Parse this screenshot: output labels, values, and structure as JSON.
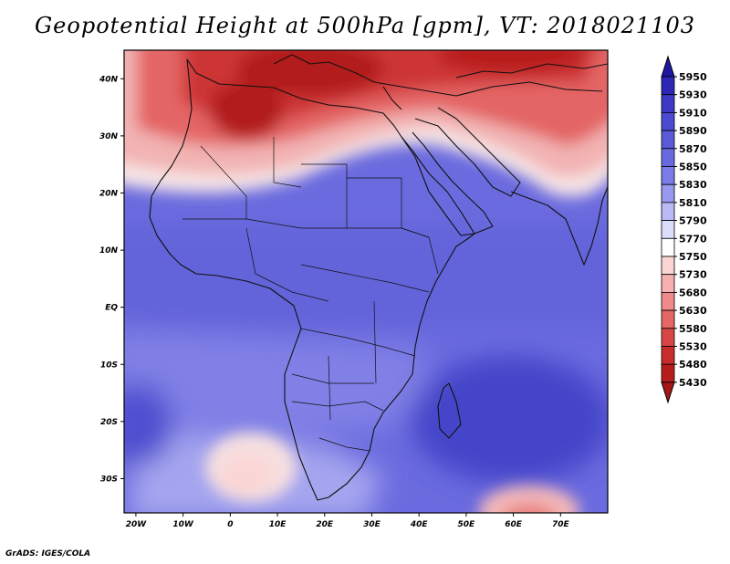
{
  "title": "Geopotential Height at 500hPa [gpm], VT: 2018021103",
  "credit": "GrADS: IGES/COLA",
  "lat_labels": [
    "40N",
    "30N",
    "20N",
    "10N",
    "EQ",
    "10S",
    "20S",
    "30S"
  ],
  "lat_values": [
    40,
    30,
    20,
    10,
    0,
    -10,
    -20,
    -30
  ],
  "lon_labels": [
    "20W",
    "10W",
    "0",
    "10E",
    "20E",
    "30E",
    "40E",
    "50E",
    "60E",
    "70E"
  ],
  "lon_values": [
    -20,
    -10,
    0,
    10,
    20,
    30,
    40,
    50,
    60,
    70
  ],
  "extent": {
    "lon_min": -22.5,
    "lon_max": 80,
    "lat_min": -36,
    "lat_max": 45
  },
  "colorbar": {
    "levels": [
      "5950",
      "5930",
      "5910",
      "5890",
      "5870",
      "5850",
      "5830",
      "5810",
      "5790",
      "5770",
      "5750",
      "5730",
      "5680",
      "5630",
      "5580",
      "5530",
      "5480",
      "5430"
    ],
    "colors": [
      "#1f17a2",
      "#2c27b4",
      "#3d39c4",
      "#4b4ad0",
      "#5a5ad8",
      "#6a6ae0",
      "#7c7ce8",
      "#9898ef",
      "#b9b9f5",
      "#dcdcfb",
      "#ffffff",
      "#fbd4d4",
      "#f6b0b0",
      "#ef8a8a",
      "#e46666",
      "#d84545",
      "#c92c2c",
      "#b71d1d",
      "#a51616"
    ]
  }
}
